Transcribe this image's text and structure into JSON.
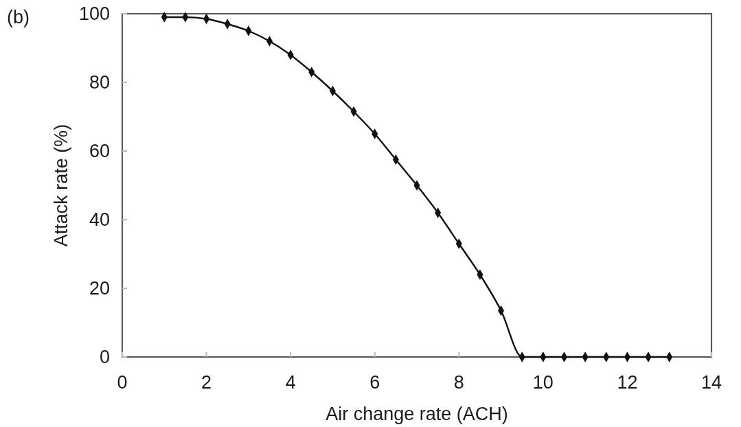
{
  "chart_data": {
    "type": "line",
    "xlabel": "Air change rate (ACH)",
    "ylabel": "Attack rate (%)",
    "annotations": [
      "(b)"
    ],
    "x": [
      1,
      1.5,
      2,
      2.5,
      3,
      3.5,
      4,
      4.5,
      5,
      5.5,
      6,
      6.5,
      7,
      7.5,
      8,
      8.5,
      9,
      9.5,
      10,
      10.5,
      11,
      11.5,
      12,
      12.5,
      13
    ],
    "series": [
      {
        "color": "#111111",
        "values": [
          99,
          99,
          98.5,
          97,
          95,
          92,
          88,
          83,
          77.5,
          71.5,
          65,
          57.5,
          50,
          42,
          33,
          24,
          13.5,
          0,
          0,
          0,
          0,
          0,
          0,
          0,
          0
        ]
      }
    ],
    "xlim": [
      0,
      14
    ],
    "xticks": [
      0,
      2,
      4,
      6,
      8,
      10,
      12,
      14
    ],
    "ylim": [
      0,
      100
    ],
    "yticks": [
      0,
      20,
      40,
      60,
      80,
      100
    ],
    "marker": "diamond",
    "line_style": "solid"
  }
}
